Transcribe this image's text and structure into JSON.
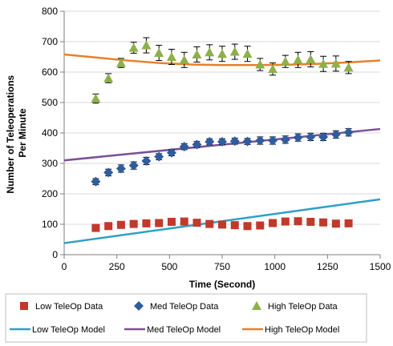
{
  "chart_data": {
    "type": "scatter",
    "xlabel": "Time (Second)",
    "ylabel_lines": [
      "Number of Teleoperations",
      "Per Minute"
    ],
    "xlim": [
      0,
      1500
    ],
    "ylim": [
      0,
      800
    ],
    "x_ticks": [
      0,
      250,
      500,
      750,
      1000,
      1250,
      1500
    ],
    "y_ticks": [
      0,
      100,
      200,
      300,
      400,
      500,
      600,
      700,
      800
    ],
    "x_tick_labels": [
      "0",
      "250",
      "500",
      "750",
      "1000",
      "1250",
      "1500"
    ],
    "y_tick_labels": [
      "0",
      "100",
      "200",
      "300",
      "400",
      "500",
      "600",
      "700",
      "800"
    ],
    "grid": "horizontal",
    "legend_position": "bottom",
    "data_series": [
      {
        "name": "Low TeleOp Data",
        "color": "#c0392b",
        "marker": "square",
        "x": [
          150,
          210,
          270,
          330,
          390,
          450,
          510,
          570,
          630,
          690,
          750,
          810,
          870,
          930,
          990,
          1050,
          1110,
          1170,
          1230,
          1290,
          1350
        ],
        "y": [
          88,
          94,
          98,
          101,
          103,
          104,
          108,
          109,
          105,
          101,
          99,
          97,
          94,
          96,
          104,
          109,
          110,
          108,
          106,
          102,
          103
        ],
        "err": [
          0,
          0,
          0,
          0,
          0,
          0,
          0,
          0,
          0,
          0,
          0,
          0,
          0,
          0,
          0,
          0,
          0,
          0,
          0,
          0,
          0
        ]
      },
      {
        "name": "Med TeleOp Data",
        "color": "#2e5c9e",
        "marker": "diamond",
        "x": [
          150,
          210,
          270,
          330,
          390,
          450,
          510,
          570,
          630,
          690,
          750,
          810,
          870,
          930,
          990,
          1050,
          1110,
          1170,
          1230,
          1290,
          1350
        ],
        "y": [
          240,
          270,
          283,
          293,
          308,
          322,
          335,
          355,
          362,
          371,
          371,
          373,
          372,
          375,
          375,
          378,
          385,
          387,
          387,
          395,
          402
        ],
        "err": [
          10,
          11,
          12,
          12,
          12,
          10,
          10,
          10,
          10,
          10,
          10,
          10,
          10,
          12,
          12,
          12,
          12,
          12,
          12,
          12,
          12
        ]
      },
      {
        "name": "High TeleOp Data",
        "color": "#8db04a",
        "marker": "triangle",
        "x": [
          150,
          210,
          270,
          330,
          390,
          450,
          510,
          570,
          630,
          690,
          750,
          810,
          870,
          930,
          990,
          1050,
          1110,
          1170,
          1230,
          1290,
          1350
        ],
        "y": [
          513,
          580,
          630,
          680,
          688,
          663,
          650,
          640,
          658,
          665,
          660,
          667,
          660,
          625,
          610,
          635,
          640,
          642,
          627,
          628,
          615
        ],
        "err": [
          15,
          15,
          15,
          18,
          25,
          25,
          25,
          25,
          25,
          25,
          25,
          25,
          25,
          20,
          20,
          20,
          25,
          25,
          25,
          25,
          20
        ]
      }
    ],
    "model_series": [
      {
        "name": "Low TeleOp Model",
        "color": "#2e9fc8",
        "x": [
          0,
          1500
        ],
        "y": [
          38,
          182
        ]
      },
      {
        "name": "Med TeleOp Model",
        "color": "#7a4f96",
        "x": [
          0,
          1500
        ],
        "y": [
          310,
          413
        ]
      },
      {
        "name": "High TeleOp Model",
        "color": "#e8802a",
        "x": [
          0,
          150,
          300,
          450,
          600,
          750,
          900,
          1050,
          1200,
          1350,
          1500
        ],
        "y": [
          658,
          648,
          638,
          630,
          625,
          623,
          623,
          624,
          627,
          632,
          638
        ]
      }
    ]
  }
}
